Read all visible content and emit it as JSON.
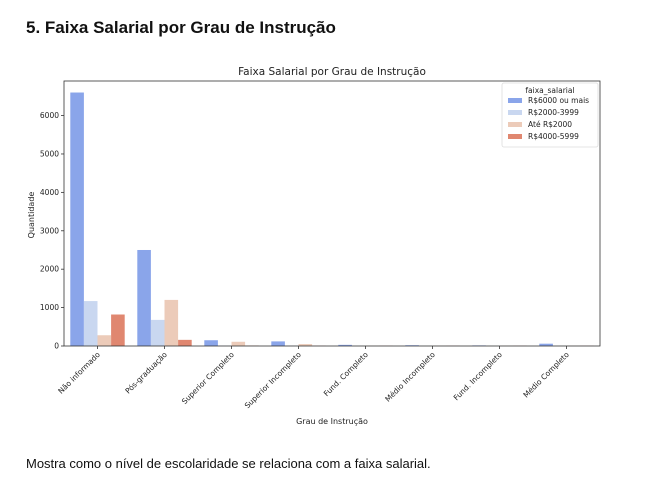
{
  "heading": "5. Faixa Salarial por Grau de Instrução",
  "description": "Mostra como o nível de escolaridade se relaciona com a faixa salarial.",
  "chart_data": {
    "type": "bar",
    "title": "Faixa Salarial por Grau de Instrução",
    "xlabel": "Grau de Instrução",
    "ylabel": "Quantidade",
    "categories": [
      "Não informado",
      "Pós-graduação",
      "Superior Completo",
      "Superior Incompleto",
      "Fund. Completo",
      "Médio Incompleto",
      "Fund. Incompleto",
      "Médio Completo"
    ],
    "legend_title": "faixa_salarial",
    "legend_position": "top-right",
    "ylim": [
      0,
      6900
    ],
    "yticks": [
      0,
      1000,
      2000,
      3000,
      4000,
      5000,
      6000
    ],
    "grid": false,
    "series": [
      {
        "name": "R$6000 ou mais",
        "color": "#8aa5ea",
        "values": [
          6600,
          2500,
          150,
          120,
          30,
          20,
          15,
          60
        ]
      },
      {
        "name": "R$2000-3999",
        "color": "#c9d7f0",
        "values": [
          1170,
          680,
          10,
          10,
          5,
          5,
          5,
          5
        ]
      },
      {
        "name": "Até R$2000",
        "color": "#eccbb9",
        "values": [
          280,
          1200,
          110,
          50,
          5,
          5,
          5,
          5
        ]
      },
      {
        "name": "R$4000-5999",
        "color": "#e08770",
        "values": [
          820,
          160,
          10,
          5,
          5,
          5,
          5,
          5
        ]
      }
    ]
  }
}
